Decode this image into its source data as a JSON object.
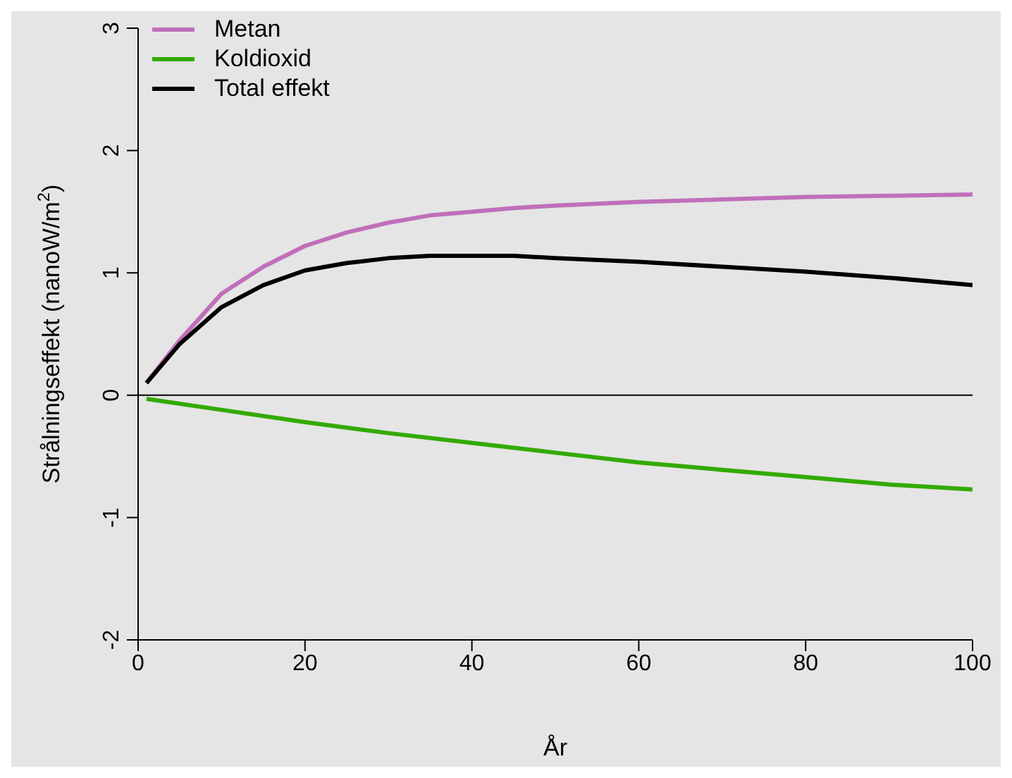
{
  "chart_data": {
    "type": "line",
    "xlabel": "År",
    "ylabel": "Strålningseffekt (nanoW/m$^{2}$)",
    "xlim": [
      0,
      100
    ],
    "ylim": [
      -2,
      3
    ],
    "xticks": [
      0,
      20,
      40,
      60,
      80,
      100
    ],
    "yticks": [
      -2,
      -1,
      0,
      1,
      2,
      3
    ],
    "grid": false,
    "legend": "top left",
    "line_style": "solid",
    "ref_lines": [
      {
        "axis": "y",
        "value": 0,
        "color": "#000000"
      }
    ],
    "series": [
      {
        "name": "Metan",
        "color": "#c06fbb",
        "x": [
          1,
          5,
          10,
          15,
          20,
          25,
          30,
          35,
          40,
          45,
          50,
          60,
          70,
          80,
          90,
          100
        ],
        "values": [
          0.1,
          0.45,
          0.83,
          1.05,
          1.22,
          1.33,
          1.41,
          1.47,
          1.5,
          1.53,
          1.55,
          1.58,
          1.6,
          1.62,
          1.63,
          1.64
        ]
      },
      {
        "name": "Koldioxid",
        "color": "#33aa00",
        "x": [
          1,
          10,
          20,
          30,
          40,
          50,
          60,
          70,
          80,
          90,
          100
        ],
        "values": [
          -0.03,
          -0.12,
          -0.22,
          -0.31,
          -0.39,
          -0.47,
          -0.55,
          -0.61,
          -0.67,
          -0.73,
          -0.77
        ]
      },
      {
        "name": "Total effekt",
        "color": "#000000",
        "x": [
          1,
          5,
          10,
          15,
          20,
          25,
          30,
          35,
          40,
          45,
          50,
          60,
          70,
          80,
          90,
          100
        ],
        "values": [
          0.1,
          0.42,
          0.72,
          0.9,
          1.02,
          1.08,
          1.12,
          1.14,
          1.14,
          1.14,
          1.12,
          1.09,
          1.05,
          1.01,
          0.96,
          0.9
        ]
      }
    ]
  }
}
